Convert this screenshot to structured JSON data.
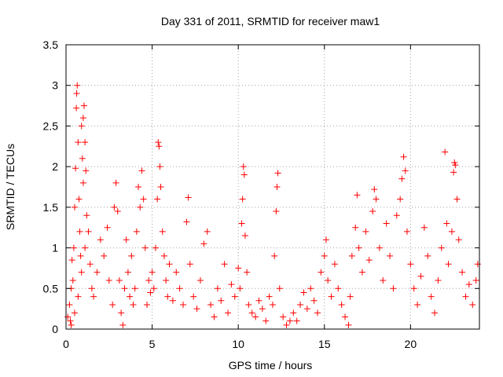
{
  "chart_data": {
    "type": "scatter",
    "title": "Day 331 of 2011, SRMTID for receiver maw1",
    "xlabel": "GPS time / hours",
    "ylabel": "SRMTID / TECUs",
    "xlim": [
      0,
      24
    ],
    "ylim": [
      0,
      3.5
    ],
    "xticks": [
      0,
      5,
      10,
      15,
      20
    ],
    "xtick_labels": [
      "0",
      "5",
      "10",
      "15",
      "20"
    ],
    "yticks": [
      0,
      0.5,
      1,
      1.5,
      2,
      2.5,
      3,
      3.5
    ],
    "ytick_labels": [
      "0",
      "0.5",
      "1",
      "1.5",
      "2",
      "2.5",
      "3",
      "3.5"
    ],
    "grid": true,
    "marker": "+",
    "marker_color": "#ff0000",
    "series": [
      {
        "name": "SRMTID",
        "points": [
          [
            0.1,
            0.15
          ],
          [
            0.2,
            0.3
          ],
          [
            0.25,
            0.1
          ],
          [
            0.3,
            0.5
          ],
          [
            0.35,
            0.85
          ],
          [
            0.4,
            0.6
          ],
          [
            0.45,
            1.0
          ],
          [
            0.5,
            1.5
          ],
          [
            0.55,
            1.98
          ],
          [
            0.6,
            2.72
          ],
          [
            0.62,
            2.9
          ],
          [
            0.65,
            3.0
          ],
          [
            0.7,
            2.3
          ],
          [
            0.75,
            1.6
          ],
          [
            0.8,
            1.2
          ],
          [
            0.85,
            0.9
          ],
          [
            0.9,
            2.5
          ],
          [
            0.95,
            2.1
          ],
          [
            1.0,
            2.6
          ],
          [
            1.05,
            2.75
          ],
          [
            1.1,
            2.3
          ],
          [
            1.15,
            1.95
          ],
          [
            1.2,
            1.4
          ],
          [
            1.3,
            1.2
          ],
          [
            1.4,
            0.8
          ],
          [
            1.5,
            0.5
          ],
          [
            0.3,
            0.05
          ],
          [
            0.5,
            0.2
          ],
          [
            0.7,
            0.4
          ],
          [
            0.9,
            0.7
          ],
          [
            1.0,
            1.8
          ],
          [
            1.1,
            1.0
          ],
          [
            1.6,
            0.4
          ],
          [
            1.8,
            0.7
          ],
          [
            2.0,
            1.1
          ],
          [
            2.2,
            0.9
          ],
          [
            2.4,
            1.25
          ],
          [
            2.5,
            0.6
          ],
          [
            2.7,
            0.3
          ],
          [
            2.8,
            1.5
          ],
          [
            2.9,
            1.8
          ],
          [
            3.0,
            1.45
          ],
          [
            3.1,
            0.6
          ],
          [
            3.2,
            0.2
          ],
          [
            3.3,
            0.05
          ],
          [
            3.4,
            0.5
          ],
          [
            3.5,
            1.1
          ],
          [
            3.6,
            0.7
          ],
          [
            3.7,
            0.4
          ],
          [
            3.8,
            0.9
          ],
          [
            3.9,
            0.3
          ],
          [
            4.0,
            0.5
          ],
          [
            4.1,
            1.2
          ],
          [
            4.2,
            1.75
          ],
          [
            4.3,
            1.5
          ],
          [
            4.4,
            1.95
          ],
          [
            4.5,
            1.6
          ],
          [
            4.6,
            1.0
          ],
          [
            4.7,
            0.3
          ],
          [
            4.8,
            0.6
          ],
          [
            4.9,
            0.45
          ],
          [
            5.0,
            0.7
          ],
          [
            5.1,
            0.5
          ],
          [
            5.2,
            1.0
          ],
          [
            5.3,
            1.6
          ],
          [
            5.35,
            2.3
          ],
          [
            5.4,
            2.25
          ],
          [
            5.45,
            2.0
          ],
          [
            5.5,
            1.75
          ],
          [
            5.6,
            1.2
          ],
          [
            5.7,
            0.9
          ],
          [
            5.8,
            0.6
          ],
          [
            5.9,
            0.4
          ],
          [
            6.0,
            0.8
          ],
          [
            6.2,
            0.35
          ],
          [
            6.4,
            0.7
          ],
          [
            6.6,
            0.5
          ],
          [
            6.8,
            0.3
          ],
          [
            7.0,
            1.32
          ],
          [
            7.1,
            1.62
          ],
          [
            7.2,
            0.8
          ],
          [
            7.4,
            0.4
          ],
          [
            7.6,
            0.25
          ],
          [
            7.8,
            0.6
          ],
          [
            8.0,
            1.05
          ],
          [
            8.2,
            1.2
          ],
          [
            8.4,
            0.3
          ],
          [
            8.6,
            0.15
          ],
          [
            8.8,
            0.5
          ],
          [
            9.0,
            0.35
          ],
          [
            9.2,
            0.8
          ],
          [
            9.4,
            0.2
          ],
          [
            9.6,
            0.55
          ],
          [
            9.8,
            0.4
          ],
          [
            10.0,
            0.75
          ],
          [
            10.1,
            0.5
          ],
          [
            10.2,
            1.3
          ],
          [
            10.25,
            1.6
          ],
          [
            10.3,
            2.0
          ],
          [
            10.35,
            1.9
          ],
          [
            10.4,
            1.15
          ],
          [
            10.5,
            0.7
          ],
          [
            10.6,
            0.3
          ],
          [
            10.8,
            0.2
          ],
          [
            11.0,
            0.15
          ],
          [
            11.2,
            0.35
          ],
          [
            11.4,
            0.25
          ],
          [
            11.6,
            0.1
          ],
          [
            11.8,
            0.4
          ],
          [
            12.0,
            0.3
          ],
          [
            12.1,
            0.9
          ],
          [
            12.2,
            1.45
          ],
          [
            12.25,
            1.75
          ],
          [
            12.3,
            1.92
          ],
          [
            12.4,
            0.5
          ],
          [
            12.6,
            0.15
          ],
          [
            12.8,
            0.05
          ],
          [
            13.0,
            0.1
          ],
          [
            13.2,
            0.2
          ],
          [
            13.4,
            0.1
          ],
          [
            13.6,
            0.3
          ],
          [
            13.8,
            0.45
          ],
          [
            14.0,
            0.25
          ],
          [
            14.2,
            0.5
          ],
          [
            14.4,
            0.35
          ],
          [
            14.6,
            0.2
          ],
          [
            14.8,
            0.7
          ],
          [
            15.0,
            0.9
          ],
          [
            15.1,
            1.1
          ],
          [
            15.2,
            0.6
          ],
          [
            15.4,
            0.4
          ],
          [
            15.6,
            0.8
          ],
          [
            15.8,
            0.5
          ],
          [
            16.0,
            0.3
          ],
          [
            16.2,
            0.15
          ],
          [
            16.4,
            0.05
          ],
          [
            16.5,
            0.4
          ],
          [
            16.6,
            0.9
          ],
          [
            16.8,
            1.25
          ],
          [
            16.9,
            1.65
          ],
          [
            17.0,
            1.0
          ],
          [
            17.2,
            0.7
          ],
          [
            17.4,
            1.2
          ],
          [
            17.6,
            0.85
          ],
          [
            17.8,
            1.45
          ],
          [
            17.9,
            1.72
          ],
          [
            18.0,
            1.6
          ],
          [
            18.2,
            1.0
          ],
          [
            18.4,
            0.6
          ],
          [
            18.6,
            1.3
          ],
          [
            18.8,
            0.9
          ],
          [
            19.0,
            0.5
          ],
          [
            19.2,
            1.4
          ],
          [
            19.4,
            1.6
          ],
          [
            19.5,
            1.85
          ],
          [
            19.6,
            2.12
          ],
          [
            19.7,
            1.95
          ],
          [
            19.8,
            1.2
          ],
          [
            20.0,
            0.8
          ],
          [
            20.2,
            0.5
          ],
          [
            20.4,
            0.3
          ],
          [
            20.6,
            0.65
          ],
          [
            20.8,
            1.25
          ],
          [
            21.0,
            0.9
          ],
          [
            21.2,
            0.4
          ],
          [
            21.4,
            0.2
          ],
          [
            21.6,
            0.6
          ],
          [
            21.8,
            1.0
          ],
          [
            22.0,
            2.18
          ],
          [
            22.1,
            1.3
          ],
          [
            22.2,
            0.8
          ],
          [
            22.4,
            1.2
          ],
          [
            22.5,
            1.93
          ],
          [
            22.55,
            2.05
          ],
          [
            22.6,
            2.02
          ],
          [
            22.7,
            1.6
          ],
          [
            22.8,
            1.1
          ],
          [
            23.0,
            0.7
          ],
          [
            23.2,
            0.4
          ],
          [
            23.4,
            0.55
          ],
          [
            23.6,
            0.3
          ],
          [
            23.8,
            0.6
          ],
          [
            23.9,
            0.8
          ]
        ]
      }
    ]
  }
}
